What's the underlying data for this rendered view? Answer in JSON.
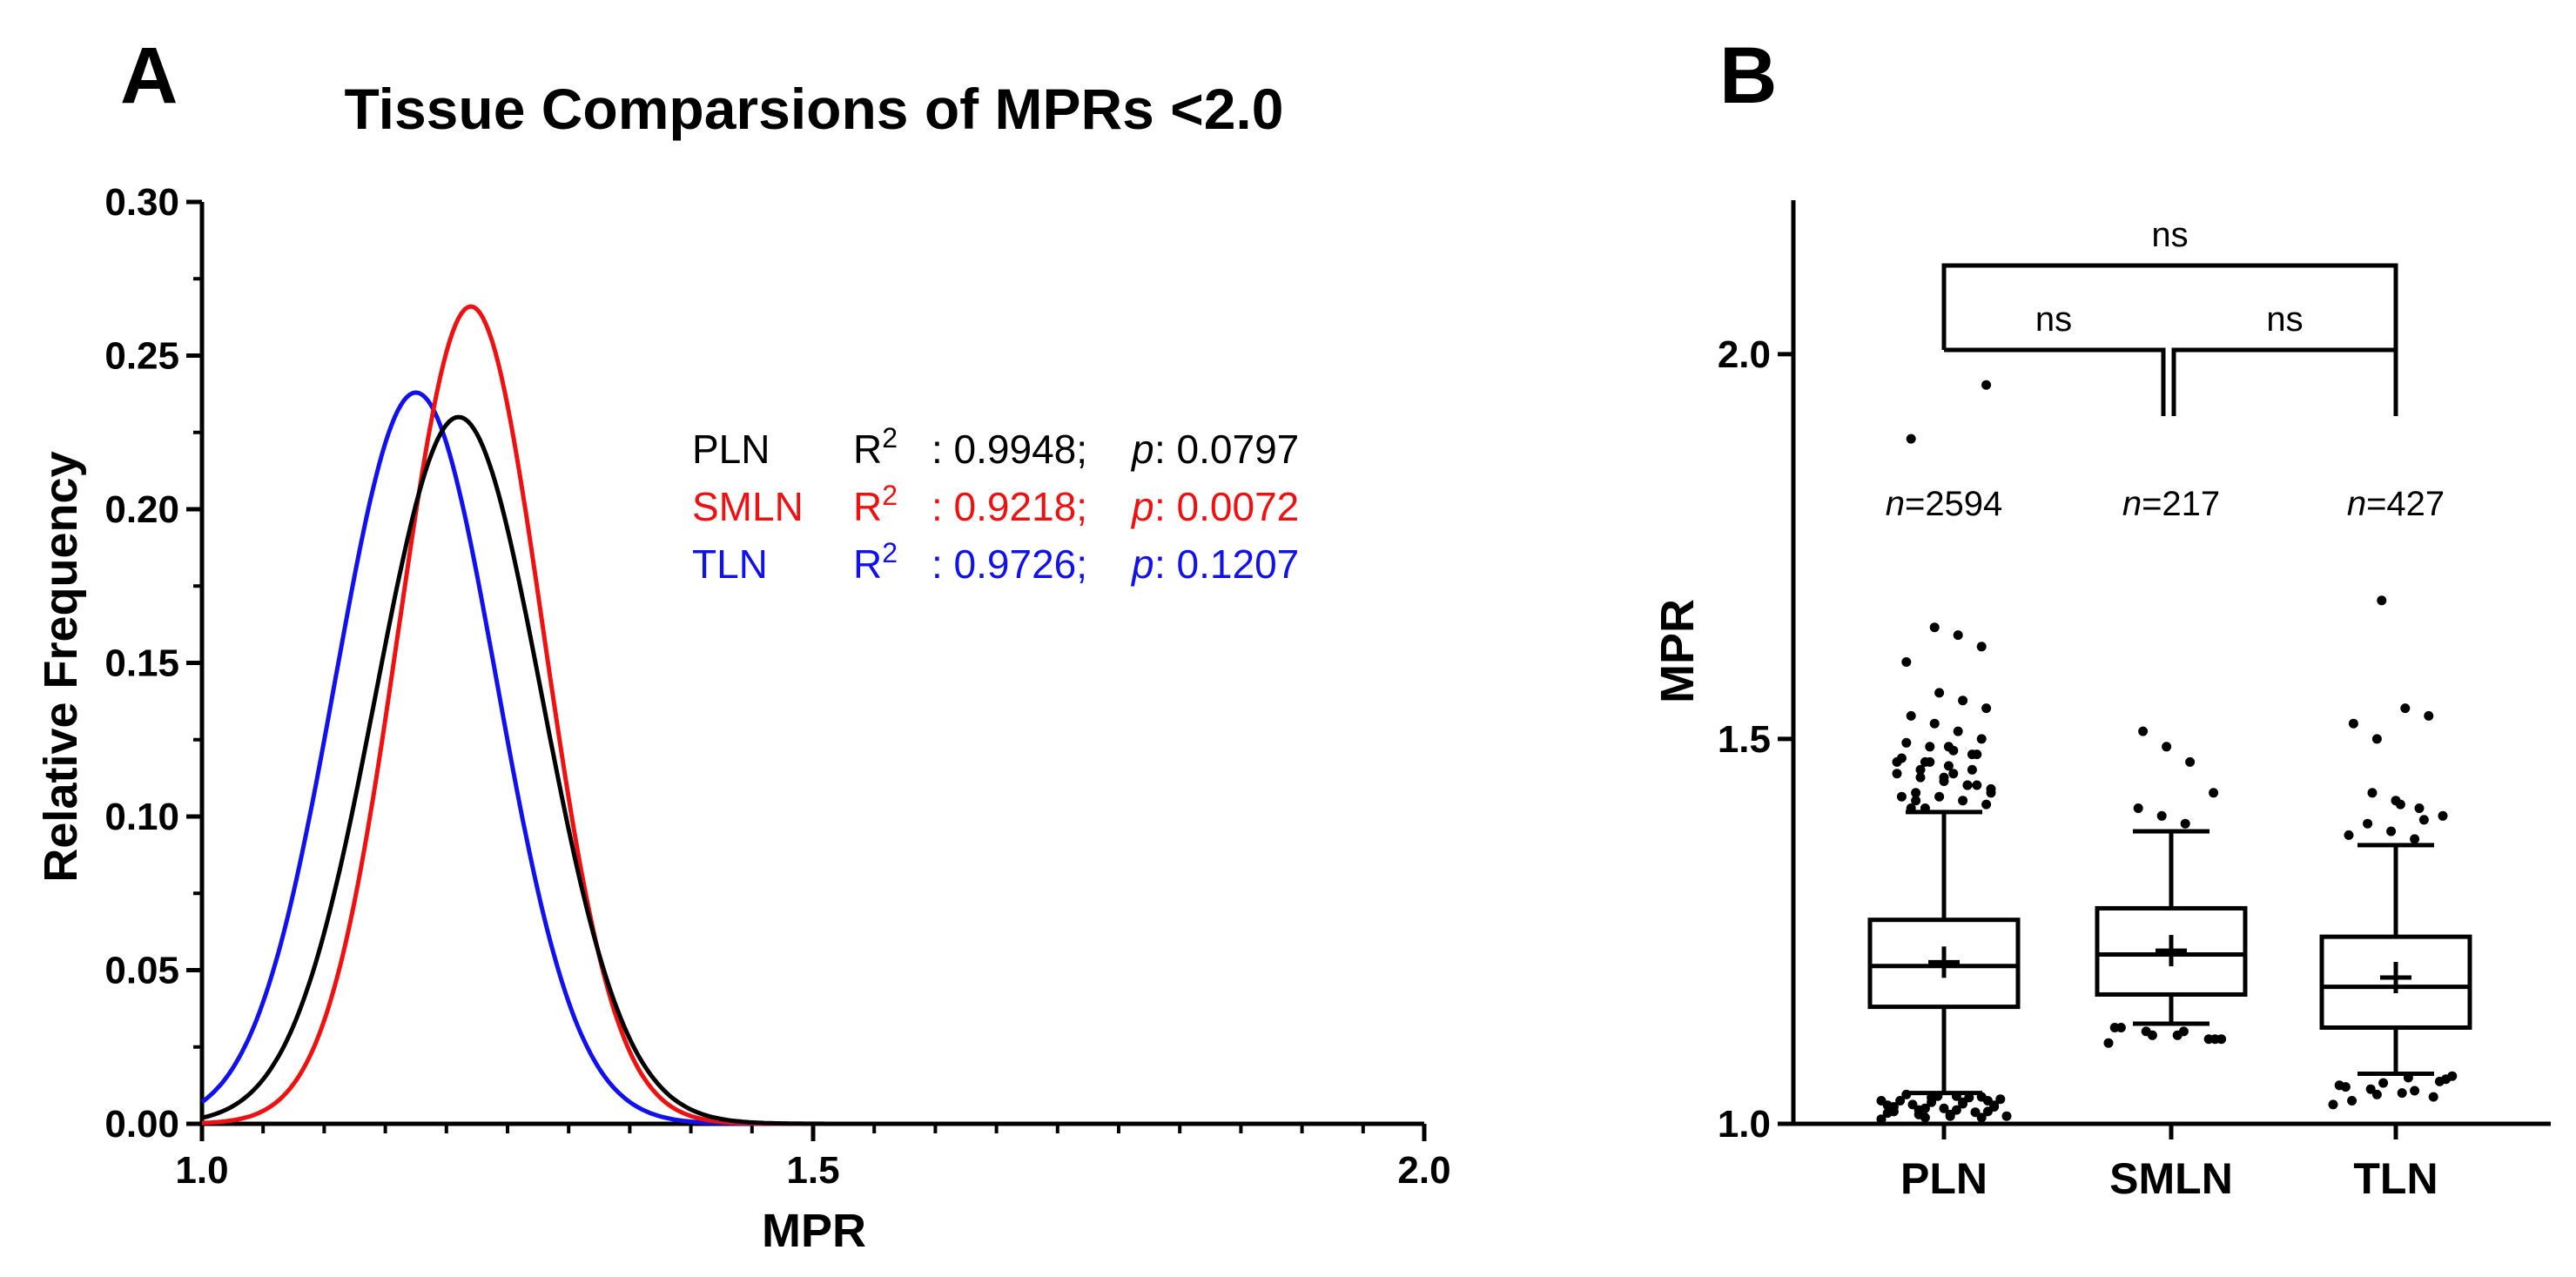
{
  "chart_data": [
    {
      "panel": "A",
      "type": "line",
      "title": "Tissue Comparsions of MPRs <2.0",
      "xlabel": "MPR",
      "ylabel": "Relative Frequency",
      "xlim": [
        1.0,
        2.0
      ],
      "ylim": [
        0.0,
        0.3
      ],
      "x_ticks": [
        "1.0",
        "1.5",
        "2.0"
      ],
      "y_ticks": [
        "0.00",
        "0.05",
        "0.10",
        "0.15",
        "0.20",
        "0.25",
        "0.30"
      ],
      "series": [
        {
          "name": "PLN",
          "color": "#000000",
          "peak_x": 1.21,
          "peak_y": 0.23,
          "sd": 0.068,
          "r2_label": "R",
          "r2_sup": "2",
          "r2_text": ": 0.9948;",
          "p_label": "p",
          "p_text": ": 0.0797"
        },
        {
          "name": "SMLN",
          "color": "#ee1111",
          "peak_x": 1.22,
          "peak_y": 0.266,
          "sd": 0.059,
          "r2_label": "R",
          "r2_sup": "2",
          "r2_text": ": 0.9218;",
          "p_label": "p",
          "p_text": ": 0.0072"
        },
        {
          "name": "TLN",
          "color": "#1111ee",
          "peak_x": 1.175,
          "peak_y": 0.238,
          "sd": 0.066,
          "r2_label": "R",
          "r2_sup": "2",
          "r2_text": ": 0.9726;",
          "p_label": "p",
          "p_text": ": 0.1207"
        }
      ]
    },
    {
      "panel": "B",
      "type": "box",
      "ylabel": "MPR",
      "ylim": [
        1.0,
        2.2
      ],
      "y_ticks": [
        "1.0",
        "1.5",
        "2.0"
      ],
      "categories": [
        "PLN",
        "SMLN",
        "TLN"
      ],
      "boxes": [
        {
          "name": "PLN",
          "n_prefix": "n",
          "n_text": "=2594",
          "whisker_low": 1.04,
          "q1": 1.152,
          "median": 1.205,
          "q3": 1.265,
          "whisker_high": 1.405,
          "mean": 1.21
        },
        {
          "name": "SMLN",
          "n_prefix": "n",
          "n_text": "=217",
          "whisker_low": 1.13,
          "q1": 1.168,
          "median": 1.22,
          "q3": 1.28,
          "whisker_high": 1.38,
          "mean": 1.225
        },
        {
          "name": "TLN",
          "n_prefix": "n",
          "n_text": "=427",
          "whisker_low": 1.065,
          "q1": 1.125,
          "median": 1.178,
          "q3": 1.243,
          "whisker_high": 1.362,
          "mean": 1.19
        }
      ],
      "outliers": {
        "PLN": [
          1.006,
          1.008,
          1.01,
          1.012,
          1.014,
          1.016,
          1.018,
          1.02,
          1.022,
          1.024,
          1.026,
          1.028,
          1.03,
          1.032,
          1.034,
          1.036,
          1.038,
          1.01,
          1.015,
          1.02,
          1.025,
          1.03,
          1.035,
          1.012,
          1.018,
          1.024,
          1.03,
          1.036,
          1.008,
          1.016,
          1.022,
          1.028,
          1.034,
          1.41,
          1.415,
          1.42,
          1.425,
          1.43,
          1.435,
          1.44,
          1.445,
          1.45,
          1.455,
          1.46,
          1.465,
          1.47,
          1.475,
          1.48,
          1.485,
          1.49,
          1.495,
          1.5,
          1.51,
          1.52,
          1.53,
          1.54,
          1.55,
          1.56,
          1.42,
          1.43,
          1.44,
          1.45,
          1.46,
          1.47,
          1.48,
          1.49,
          1.41,
          1.425,
          1.44,
          1.455,
          1.47,
          1.6,
          1.62,
          1.635,
          1.645,
          1.89,
          1.96
        ],
        "SMLN": [
          1.105,
          1.11,
          1.115,
          1.12,
          1.125,
          1.11,
          1.12,
          1.115,
          1.125,
          1.11,
          1.39,
          1.4,
          1.41,
          1.43,
          1.47,
          1.49,
          1.51
        ],
        "TLN": [
          1.025,
          1.035,
          1.04,
          1.045,
          1.05,
          1.055,
          1.06,
          1.038,
          1.048,
          1.058,
          1.043,
          1.053,
          1.03,
          1.062,
          1.37,
          1.38,
          1.39,
          1.4,
          1.41,
          1.42,
          1.43,
          1.375,
          1.395,
          1.415,
          1.5,
          1.52,
          1.53,
          1.54,
          1.68
        ]
      },
      "comparisons": [
        {
          "from": "PLN",
          "to": "SMLN",
          "label": "ns"
        },
        {
          "from": "SMLN",
          "to": "TLN",
          "label": "ns"
        },
        {
          "from": "PLN",
          "to": "TLN",
          "label": "ns"
        }
      ]
    }
  ]
}
